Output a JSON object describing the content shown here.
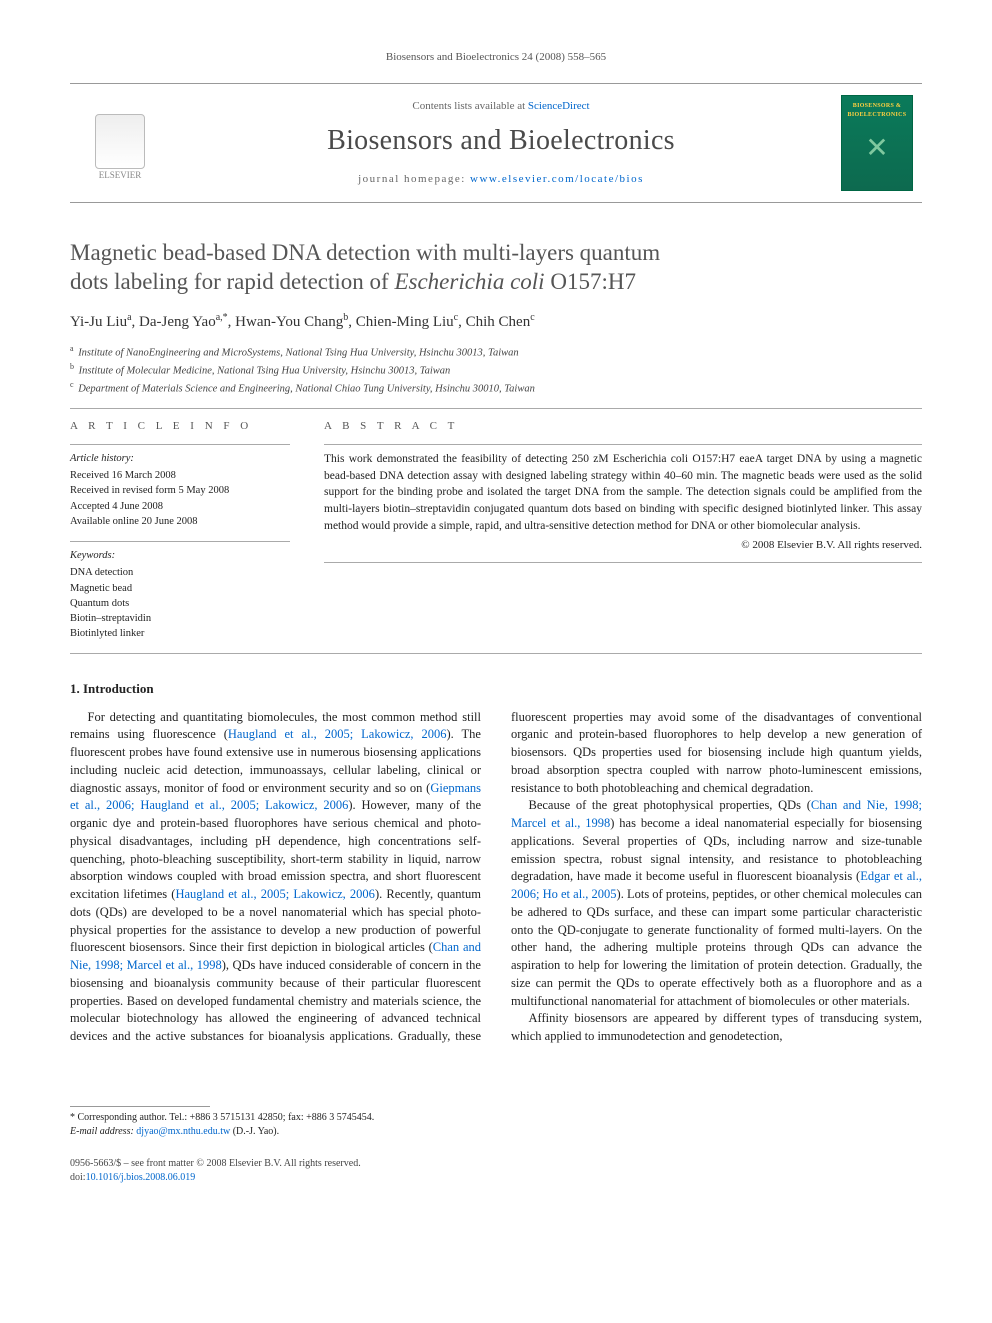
{
  "running_head": "Biosensors and Bioelectronics 24 (2008) 558–565",
  "banner": {
    "contents_prefix": "Contents lists available at ",
    "contents_link": "ScienceDirect",
    "journal": "Biosensors and Bioelectronics",
    "homepage_prefix": "journal homepage: ",
    "homepage_url": "www.elsevier.com/locate/bios",
    "publisher": "ELSEVIER",
    "cover_title": "BIOSENSORS & BIOELECTRONICS"
  },
  "title_line1": "Magnetic bead-based DNA detection with multi-layers quantum",
  "title_line2_a": "dots labeling for rapid detection of ",
  "title_line2_b": "Escherichia coli",
  "title_line2_c": " O157:H7",
  "authors_html": "Yi-Ju Liu<sup>a</sup>, Da-Jeng Yao<sup>a,*</sup>, Hwan-You Chang<sup>b</sup>, Chien-Ming Liu<sup>c</sup>, Chih Chen<sup>c</sup>",
  "affiliations": [
    {
      "sup": "a",
      "text": "Institute of NanoEngineering and MicroSystems, National Tsing Hua University, Hsinchu 30013, Taiwan"
    },
    {
      "sup": "b",
      "text": "Institute of Molecular Medicine, National Tsing Hua University, Hsinchu 30013, Taiwan"
    },
    {
      "sup": "c",
      "text": "Department of Materials Science and Engineering, National Chiao Tung University, Hsinchu 30010, Taiwan"
    }
  ],
  "info": {
    "heading": "A R T I C L E   I N F O",
    "history_label": "Article history:",
    "history": [
      "Received 16 March 2008",
      "Received in revised form 5 May 2008",
      "Accepted 4 June 2008",
      "Available online 20 June 2008"
    ],
    "keywords_label": "Keywords:",
    "keywords": [
      "DNA detection",
      "Magnetic bead",
      "Quantum dots",
      "Biotin–streptavidin",
      "Biotinlyted linker"
    ]
  },
  "abstract": {
    "heading": "A B S T R A C T",
    "text": "This work demonstrated the feasibility of detecting 250 zM Escherichia coli O157:H7 eaeA target DNA by using a magnetic bead-based DNA detection assay with designed labeling strategy within 40–60 min. The magnetic beads were used as the solid support for the binding probe and isolated the target DNA from the sample. The detection signals could be amplified from the multi-layers biotin–streptavidin conjugated quantum dots based on binding with specific designed biotinlyted linker. This assay method would provide a simple, rapid, and ultra-sensitive detection method for DNA or other biomolecular analysis.",
    "copyright": "© 2008 Elsevier B.V. All rights reserved."
  },
  "section1_heading": "1.  Introduction",
  "body": {
    "p1a": "For detecting and quantitating biomolecules, the most common method still remains using fluorescence (",
    "p1_ref1": "Haugland et al., 2005; Lakowicz, 2006",
    "p1b": "). The fluorescent probes have found extensive use in numerous biosensing applications including nucleic acid detection, immunoassays, cellular labeling, clinical or diagnostic assays, monitor of food or environment security and so on (",
    "p1_ref2": "Giepmans et al., 2006; Haugland et al., 2005; Lakowicz, 2006",
    "p1c": "). However, many of the organic dye and protein-based fluorophores have serious chemical and photo-physical disadvantages, including pH dependence, high concentrations self-quenching, photo-bleaching susceptibility, short-term stability in liquid, narrow absorption windows coupled with broad emission spectra, and short fluorescent excitation lifetimes (",
    "p1_ref3": "Haugland et al., 2005; Lakowicz, 2006",
    "p1d": "). Recently, quantum dots (QDs) are developed to be a novel nanomaterial which has special photo-physical properties for the assistance to develop a new production of powerful fluorescent biosensors. Since their first depiction in biological articles (",
    "p1_ref4": "Chan and Nie, 1998; Marcel et al., 1998",
    "p1e": "), QDs have induced considerable of concern in the biosensing and bioanalysis community because of their particular fluorescent properties. Based on developed fundamental chemistry and materials science, the molecular biotechnology has allowed the engineering of advanced technical devices and the active substances for bioanalysis applications. Gradually, these fluorescent properties may avoid some of the disadvantages of conventional organic and protein-based fluorophores to help develop a new generation of biosensors. QDs properties used for biosensing include high quantum yields, broad absorption spectra coupled with narrow photo-luminescent emissions, resistance to both photobleaching and chemical degradation.",
    "p2a": "Because of the great photophysical properties, QDs (",
    "p2_ref1": "Chan and Nie, 1998; Marcel et al., 1998",
    "p2b": ") has become a ideal nanomaterial especially for biosensing applications. Several properties of QDs, including narrow and size-tunable emission spectra, robust signal intensity, and resistance to photobleaching degradation, have made it become useful in fluorescent bioanalysis (",
    "p2_ref2": "Edgar et al., 2006; Ho et al., 2005",
    "p2c": "). Lots of proteins, peptides, or other chemical molecules can be adhered to QDs surface, and these can impart some particular characteristic onto the QD-conjugate to generate functionality of formed multi-layers. On the other hand, the adhering multiple proteins through QDs can advance the aspiration to help for lowering the limitation of protein detection. Gradually, the size can permit the QDs to operate effectively both as a fluorophore and as a multifunctional nanomaterial for attachment of biomolecules or other materials.",
    "p3": "Affinity biosensors are appeared by different types of transducing system, which applied to immunodetection and genodetection,"
  },
  "footnote": {
    "corr": "* Corresponding author. Tel.: +886 3 5715131 42850; fax: +886 3 5745454.",
    "email_label": "E-mail address: ",
    "email": "djyao@mx.nthu.edu.tw",
    "email_suffix": " (D.-J. Yao)."
  },
  "footer": {
    "line1": "0956-5663/$ – see front matter © 2008 Elsevier B.V. All rights reserved.",
    "doi_prefix": "doi:",
    "doi": "10.1016/j.bios.2008.06.019"
  }
}
